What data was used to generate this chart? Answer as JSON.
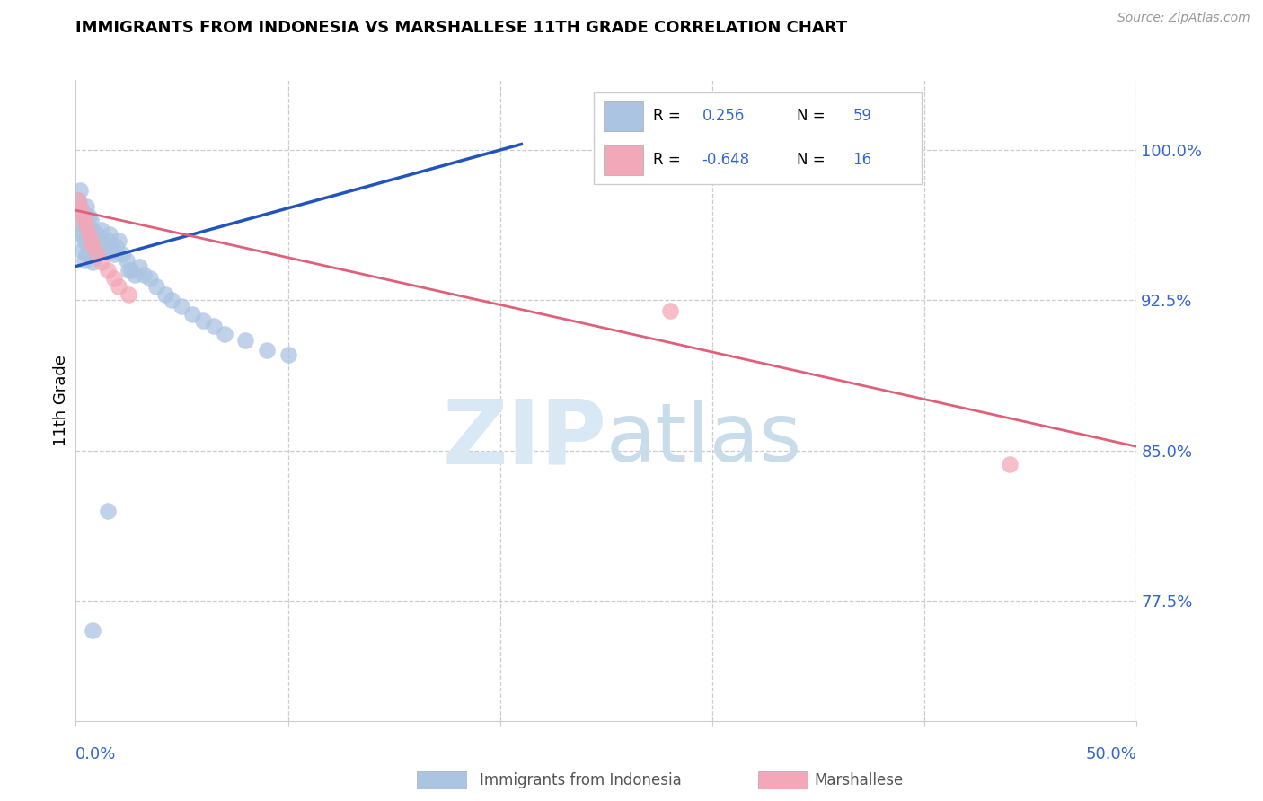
{
  "title": "IMMIGRANTS FROM INDONESIA VS MARSHALLESE 11TH GRADE CORRELATION CHART",
  "source": "Source: ZipAtlas.com",
  "ylabel": "11th Grade",
  "ytick_labels": [
    "77.5%",
    "85.0%",
    "92.5%",
    "100.0%"
  ],
  "ytick_values": [
    0.775,
    0.85,
    0.925,
    1.0
  ],
  "xlim": [
    0.0,
    0.5
  ],
  "ylim": [
    0.715,
    1.035
  ],
  "blue_color": "#aac4e2",
  "pink_color": "#f2a8b8",
  "blue_line_color": "#2255bb",
  "pink_line_color": "#e0607a",
  "legend_text_color": "#3366cc",
  "watermark_color": "#d8e8f5",
  "indonesia_x": [
    0.001,
    0.001,
    0.002,
    0.002,
    0.003,
    0.003,
    0.003,
    0.004,
    0.004,
    0.004,
    0.005,
    0.005,
    0.005,
    0.005,
    0.006,
    0.006,
    0.006,
    0.007,
    0.007,
    0.007,
    0.008,
    0.008,
    0.008,
    0.009,
    0.009,
    0.01,
    0.01,
    0.011,
    0.012,
    0.012,
    0.013,
    0.014,
    0.015,
    0.016,
    0.017,
    0.018,
    0.019,
    0.02,
    0.022,
    0.024,
    0.026,
    0.028,
    0.03,
    0.032,
    0.035,
    0.038,
    0.042,
    0.045,
    0.05,
    0.055,
    0.06,
    0.065,
    0.07,
    0.08,
    0.09,
    0.1,
    0.025,
    0.015,
    0.008
  ],
  "indonesia_y": [
    0.975,
    0.965,
    0.98,
    0.96,
    0.97,
    0.958,
    0.95,
    0.968,
    0.955,
    0.945,
    0.972,
    0.963,
    0.955,
    0.948,
    0.967,
    0.958,
    0.95,
    0.965,
    0.956,
    0.948,
    0.96,
    0.952,
    0.944,
    0.955,
    0.947,
    0.958,
    0.95,
    0.955,
    0.96,
    0.952,
    0.95,
    0.953,
    0.955,
    0.958,
    0.95,
    0.948,
    0.952,
    0.955,
    0.948,
    0.945,
    0.94,
    0.938,
    0.942,
    0.938,
    0.936,
    0.932,
    0.928,
    0.925,
    0.922,
    0.918,
    0.915,
    0.912,
    0.908,
    0.905,
    0.9,
    0.898,
    0.94,
    0.82,
    0.76
  ],
  "marshallese_x": [
    0.001,
    0.002,
    0.003,
    0.004,
    0.005,
    0.006,
    0.007,
    0.008,
    0.01,
    0.012,
    0.015,
    0.018,
    0.02,
    0.025,
    0.28,
    0.44
  ],
  "marshallese_y": [
    0.975,
    0.972,
    0.968,
    0.965,
    0.962,
    0.958,
    0.955,
    0.952,
    0.948,
    0.944,
    0.94,
    0.936,
    0.932,
    0.928,
    0.92,
    0.843
  ],
  "blue_line_x": [
    0.0,
    0.21
  ],
  "pink_line_x": [
    0.0,
    0.5
  ],
  "blue_line_y": [
    0.942,
    1.003
  ],
  "pink_line_y": [
    0.97,
    0.852
  ]
}
